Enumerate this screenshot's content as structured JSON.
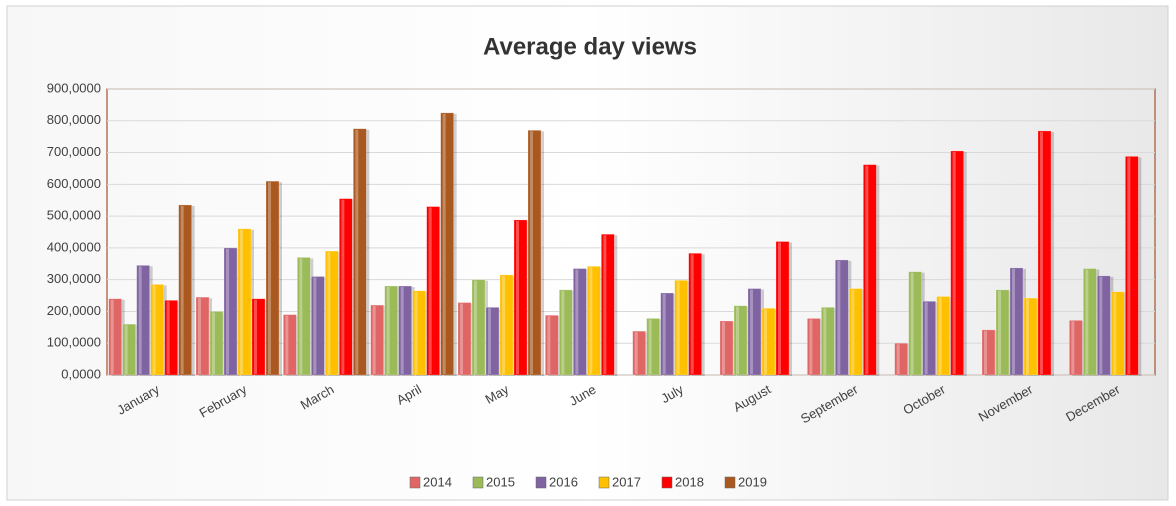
{
  "chart_data": {
    "type": "bar",
    "title": "Average day views",
    "categories": [
      "January",
      "February",
      "March",
      "April",
      "May",
      "June",
      "July",
      "August",
      "September",
      "October",
      "November",
      "December"
    ],
    "series": [
      {
        "name": "2014",
        "color": "#e06666",
        "values": [
          240,
          245,
          190,
          220,
          228,
          188,
          138,
          170,
          178,
          100,
          142,
          172
        ]
      },
      {
        "name": "2015",
        "color": "#9bbb59",
        "values": [
          160,
          200,
          370,
          280,
          300,
          268,
          178,
          218,
          213,
          325,
          268,
          335
        ]
      },
      {
        "name": "2016",
        "color": "#8064a2",
        "values": [
          345,
          400,
          310,
          280,
          213,
          335,
          258,
          272,
          362,
          232,
          337,
          312
        ]
      },
      {
        "name": "2017",
        "color": "#ffc000",
        "values": [
          285,
          460,
          390,
          265,
          315,
          342,
          298,
          210,
          272,
          247,
          242,
          262
        ]
      },
      {
        "name": "2018",
        "color": "#ff0000",
        "values": [
          235,
          240,
          555,
          530,
          488,
          443,
          383,
          420,
          662,
          705,
          768,
          688
        ]
      },
      {
        "name": "2019",
        "color": "#a9581f",
        "values": [
          535,
          610,
          775,
          825,
          770,
          null,
          null,
          null,
          null,
          null,
          null,
          null
        ]
      }
    ],
    "ylim": [
      0,
      900
    ],
    "yticks": [
      {
        "value": 0,
        "label": "0,0000"
      },
      {
        "value": 100,
        "label": "100,0000"
      },
      {
        "value": 200,
        "label": "200,0000"
      },
      {
        "value": 300,
        "label": "300,0000"
      },
      {
        "value": 400,
        "label": "400,0000"
      },
      {
        "value": 500,
        "label": "500,0000"
      },
      {
        "value": 600,
        "label": "600,0000"
      },
      {
        "value": 700,
        "label": "700,0000"
      },
      {
        "value": 800,
        "label": "800,0000"
      },
      {
        "value": 900,
        "label": "900,0000"
      }
    ],
    "grid": true,
    "legend": "bottom"
  }
}
